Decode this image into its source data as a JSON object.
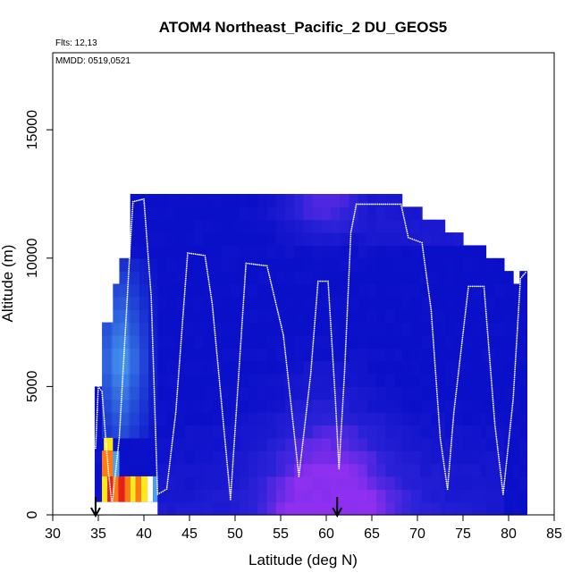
{
  "chart_data": {
    "type": "heatmap",
    "title": "ATOM4 Northeast_Pacific_2 DU_GEOS5",
    "annotations": {
      "flights": "Flts: 12,13",
      "dates": "MMDD: 0519,0521"
    },
    "xlabel": "Latitude (deg N)",
    "ylabel": "Altitude (m)",
    "xlim": [
      30,
      85
    ],
    "ylim": [
      0,
      18000
    ],
    "x_ticks": [
      30,
      35,
      40,
      45,
      50,
      55,
      60,
      65,
      70,
      75,
      80,
      85
    ],
    "y_ticks": [
      0,
      5000,
      10000,
      15000
    ],
    "grid": false,
    "legend": "none",
    "colors": {
      "background": "#0a10c8",
      "low": "#2b22d8",
      "mid": "#6a2ae6",
      "high": "#8f30f0",
      "hot_red": "#e8201a",
      "hot_orange": "#ff7a10",
      "hot_yellow": "#ffe81a",
      "light_blue": "#4aa0f0",
      "track": "#ffffff"
    },
    "model_columns": [
      {
        "x0": 34.6,
        "x1": 35.4,
        "top": 5000
      },
      {
        "x0": 35.4,
        "x1": 36.6,
        "top": 7500
      },
      {
        "x0": 36.6,
        "x1": 37.3,
        "top": 9000
      },
      {
        "x0": 37.3,
        "x1": 38.5,
        "top": 10000
      },
      {
        "x0": 38.5,
        "x1": 41.5,
        "top": 12500
      },
      {
        "x0": 41.5,
        "x1": 63.5,
        "top": 12500
      },
      {
        "x0": 63.5,
        "x1": 68.3,
        "top": 12500
      },
      {
        "x0": 68.3,
        "x1": 70.5,
        "top": 12000
      },
      {
        "x0": 70.5,
        "x1": 73.0,
        "top": 11500
      },
      {
        "x0": 73.0,
        "x1": 75.0,
        "top": 11000
      },
      {
        "x0": 75.0,
        "x1": 77.5,
        "top": 10500
      },
      {
        "x0": 77.5,
        "x1": 79.5,
        "top": 10000
      },
      {
        "x0": 79.5,
        "x1": 80.5,
        "top": 9500
      },
      {
        "x0": 80.5,
        "x1": 81.2,
        "top": 9000
      },
      {
        "x0": 81.2,
        "x1": 82.0,
        "top": 9500
      }
    ],
    "flight_track": [
      {
        "lat": 34.7,
        "alt": 2600
      },
      {
        "lat": 35.0,
        "alt": 5000
      },
      {
        "lat": 35.4,
        "alt": 4800
      },
      {
        "lat": 36.1,
        "alt": 1700
      },
      {
        "lat": 36.5,
        "alt": 400
      },
      {
        "lat": 37.3,
        "alt": 3000
      },
      {
        "lat": 38.5,
        "alt": 10500
      },
      {
        "lat": 38.8,
        "alt": 12200
      },
      {
        "lat": 40.0,
        "alt": 12300
      },
      {
        "lat": 40.8,
        "alt": 8500
      },
      {
        "lat": 41.5,
        "alt": 800
      },
      {
        "lat": 42.5,
        "alt": 1000
      },
      {
        "lat": 43.5,
        "alt": 4000
      },
      {
        "lat": 44.8,
        "alt": 10200
      },
      {
        "lat": 46.7,
        "alt": 10100
      },
      {
        "lat": 47.5,
        "alt": 8200
      },
      {
        "lat": 49.5,
        "alt": 600
      },
      {
        "lat": 51.2,
        "alt": 9800
      },
      {
        "lat": 53.5,
        "alt": 9700
      },
      {
        "lat": 55.3,
        "alt": 7000
      },
      {
        "lat": 57.0,
        "alt": 1500
      },
      {
        "lat": 58.3,
        "alt": 5500
      },
      {
        "lat": 59.1,
        "alt": 9100
      },
      {
        "lat": 60.2,
        "alt": 9100
      },
      {
        "lat": 61.0,
        "alt": 4500
      },
      {
        "lat": 61.4,
        "alt": 1800
      },
      {
        "lat": 62.0,
        "alt": 5500
      },
      {
        "lat": 62.7,
        "alt": 11000
      },
      {
        "lat": 63.3,
        "alt": 12100
      },
      {
        "lat": 68.2,
        "alt": 12100
      },
      {
        "lat": 69.0,
        "alt": 10800
      },
      {
        "lat": 70.5,
        "alt": 10600
      },
      {
        "lat": 71.5,
        "alt": 8000
      },
      {
        "lat": 72.5,
        "alt": 3000
      },
      {
        "lat": 73.3,
        "alt": 1000
      },
      {
        "lat": 74.0,
        "alt": 4000
      },
      {
        "lat": 75.6,
        "alt": 8900
      },
      {
        "lat": 77.3,
        "alt": 8900
      },
      {
        "lat": 78.5,
        "alt": 3500
      },
      {
        "lat": 79.4,
        "alt": 800
      },
      {
        "lat": 80.5,
        "alt": 4500
      },
      {
        "lat": 81.3,
        "alt": 9200
      },
      {
        "lat": 82.0,
        "alt": 9500
      }
    ],
    "markers": [
      {
        "lat": 34.7,
        "label": "down-arrow"
      },
      {
        "lat": 61.2,
        "label": "down-arrow"
      }
    ]
  }
}
